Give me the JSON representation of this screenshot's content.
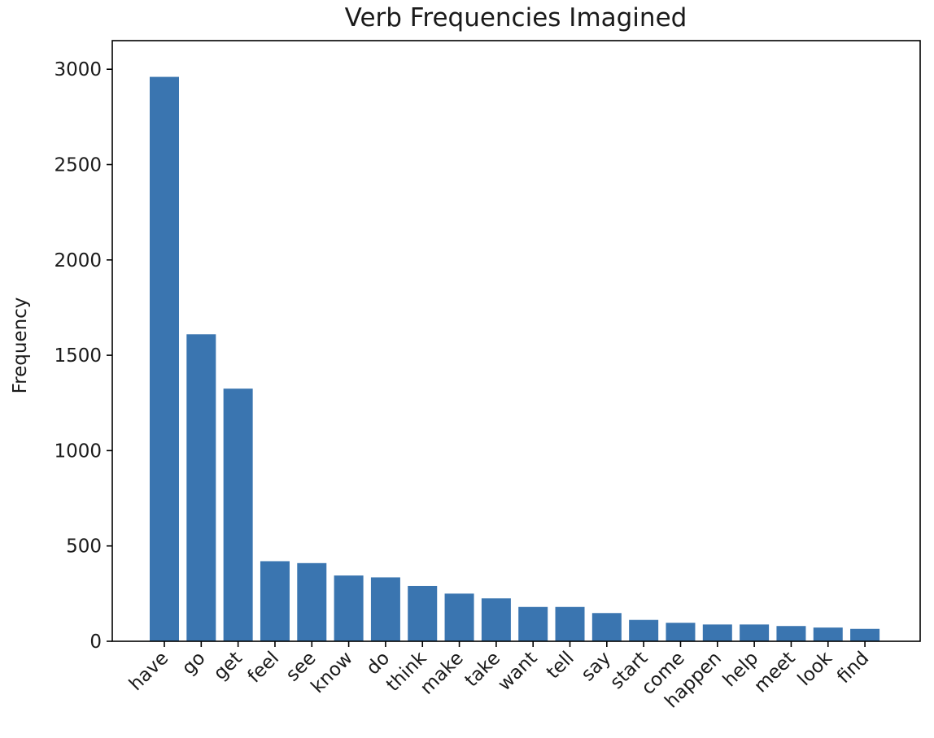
{
  "chart_data": {
    "type": "bar",
    "title": "Verb Frequencies Imagined",
    "xlabel": "",
    "ylabel": "Frequency",
    "categories": [
      "have",
      "go",
      "get",
      "feel",
      "see",
      "know",
      "do",
      "think",
      "make",
      "take",
      "want",
      "tell",
      "say",
      "start",
      "come",
      "happen",
      "help",
      "meet",
      "look",
      "find"
    ],
    "values": [
      2960,
      1610,
      1325,
      420,
      410,
      345,
      335,
      290,
      250,
      225,
      180,
      180,
      148,
      112,
      97,
      88,
      88,
      80,
      72,
      65
    ],
    "ylim": [
      0,
      3150
    ],
    "yticks": [
      0,
      500,
      1000,
      1500,
      2000,
      2500,
      3000
    ],
    "bar_color": "#3a75b0",
    "grid": false
  }
}
